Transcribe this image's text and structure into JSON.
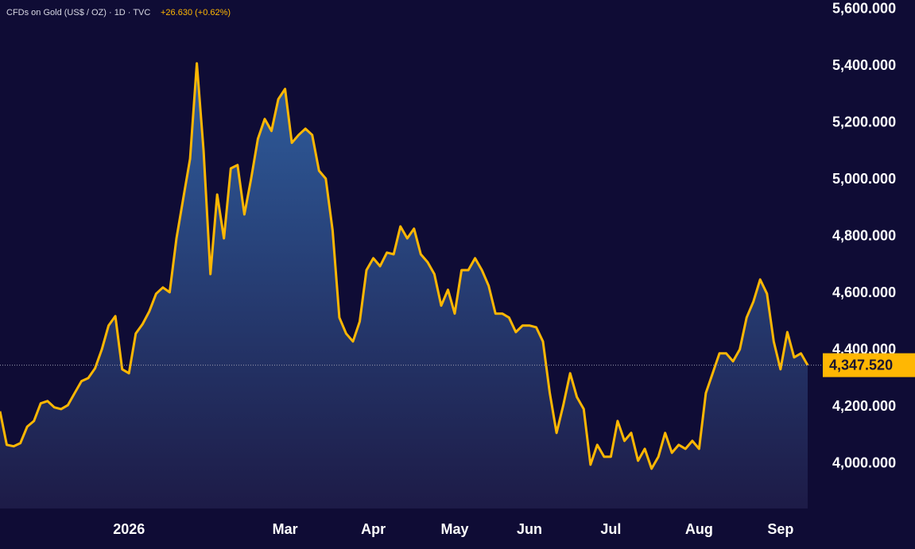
{
  "chart_data": {
    "type": "area",
    "title": "CFDs on Gold (US$ / OZ) · 1D · TVC",
    "subtitle": "+26.630 (+0.62%)",
    "categories": [
      null,
      null,
      null,
      null,
      null,
      null,
      null,
      null,
      null,
      null,
      null,
      null,
      null,
      null,
      null,
      null,
      null,
      null,
      null,
      "2026",
      null,
      null,
      null,
      null,
      null,
      null,
      null,
      null,
      null,
      null,
      null,
      null,
      null,
      null,
      null,
      null,
      null,
      null,
      null,
      null,
      null,
      null,
      "Mar",
      null,
      null,
      null,
      null,
      null,
      null,
      null,
      null,
      null,
      null,
      null,
      null,
      "Apr",
      null,
      null,
      null,
      null,
      null,
      null,
      null,
      null,
      null,
      null,
      null,
      "May",
      null,
      null,
      null,
      null,
      null,
      null,
      null,
      null,
      null,
      null,
      "Jun",
      null,
      null,
      null,
      null,
      null,
      null,
      null,
      null,
      null,
      null,
      null,
      "Jul",
      null,
      null,
      null,
      null,
      null,
      null,
      null,
      null,
      null,
      null,
      null,
      null,
      "Aug",
      null,
      null,
      null,
      null,
      null,
      null,
      null,
      null,
      null,
      null,
      null,
      "Sep",
      null,
      null,
      null,
      null
    ],
    "series": [
      {
        "name": "Gold",
        "color": "#ffb703",
        "values": [
          4185,
          4067,
          4062,
          4073,
          4131,
          4151,
          4213,
          4221,
          4199,
          4193,
          4207,
          4249,
          4291,
          4302,
          4336,
          4403,
          4487,
          4520,
          4333,
          4319,
          4459,
          4492,
          4537,
          4599,
          4621,
          4604,
          4794,
          4934,
          5074,
          5410,
          5102,
          4668,
          4948,
          4794,
          5040,
          5052,
          4878,
          5004,
          5144,
          5214,
          5172,
          5284,
          5320,
          5130,
          5158,
          5180,
          5158,
          5032,
          5004,
          4822,
          4515,
          4459,
          4431,
          4501,
          4682,
          4724,
          4696,
          4744,
          4738,
          4836,
          4794,
          4828,
          4738,
          4710,
          4668,
          4557,
          4613,
          4529,
          4682,
          4682,
          4724,
          4682,
          4627,
          4529,
          4529,
          4515,
          4464,
          4487,
          4487,
          4481,
          4431,
          4249,
          4109,
          4207,
          4319,
          4235,
          4193,
          3997,
          4067,
          4025,
          4025,
          4151,
          4081,
          4109,
          4011,
          4053,
          3983,
          4025,
          4109,
          4039,
          4067,
          4053,
          4081,
          4053,
          4249,
          4319,
          4389,
          4389,
          4361,
          4403,
          4515,
          4571,
          4649,
          4599,
          4431,
          4333,
          4464,
          4375,
          4389,
          4347.52
        ],
        "value_labels": [
          null,
          null,
          null,
          null,
          null,
          null,
          null,
          null,
          null,
          null,
          null,
          null,
          null,
          null,
          null,
          null,
          null,
          null,
          null,
          null,
          null,
          null,
          null,
          null,
          null,
          null,
          null,
          null,
          null,
          null,
          null,
          null,
          null,
          null,
          null,
          null,
          null,
          null,
          null,
          null,
          null,
          null,
          null,
          null,
          null,
          null,
          null,
          null,
          null,
          null,
          null,
          null,
          null,
          null,
          null,
          null,
          null,
          null,
          null,
          null,
          null,
          null,
          null,
          null,
          null,
          null,
          null,
          null,
          null,
          null,
          null,
          null,
          null,
          null,
          null,
          null,
          null,
          null,
          null,
          null,
          null,
          null,
          null,
          null,
          null,
          null,
          null,
          null,
          null,
          null,
          null,
          null,
          null,
          null,
          null,
          null,
          null,
          null,
          null,
          null,
          null,
          null,
          null,
          null,
          null,
          null,
          null,
          null,
          null,
          null,
          null,
          null,
          null,
          null,
          null,
          null,
          null,
          null,
          null,
          "4,347.520"
        ]
      }
    ],
    "ylim": [
      3843,
      5633
    ],
    "yticks": [
      {
        "value": 4000,
        "label": "4,000.000"
      },
      {
        "value": 4200,
        "label": "4,200.000"
      },
      {
        "value": 4400,
        "label": "4,400.000"
      },
      {
        "value": 4600,
        "label": "4,600.000"
      },
      {
        "value": 4800,
        "label": "4,800.000"
      },
      {
        "value": 5000,
        "label": "5,000.000"
      },
      {
        "value": 5200,
        "label": "5,200.000"
      },
      {
        "value": 5400,
        "label": "5,400.000"
      },
      {
        "value": 5600,
        "label": "5,600.000"
      }
    ],
    "grid": false
  }
}
